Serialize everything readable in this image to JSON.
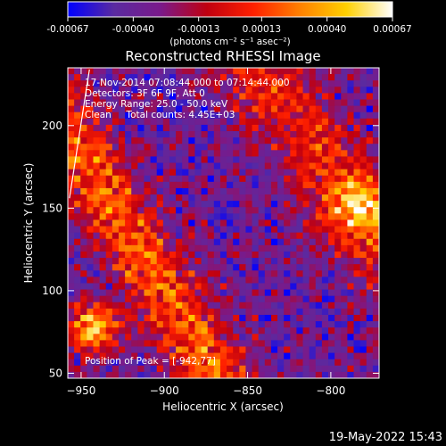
{
  "window": {
    "timestamp": "19-May-2022 15:43"
  },
  "colorbar": {
    "tick_labels": [
      "-0.00067",
      "-0.00040",
      "-0.00013",
      "0.00013",
      "0.00040",
      "0.00067"
    ],
    "unit_label": "(photons cm⁻² s⁻¹ asec⁻²)",
    "range": [
      -0.00067,
      0.00067
    ],
    "colors": [
      "#0000ff",
      "#5a2aa0",
      "#7a1a8a",
      "#c00010",
      "#ff2000",
      "#ff8000",
      "#ffd000",
      "#ffffff"
    ]
  },
  "chart_data": {
    "type": "heatmap",
    "title": "Reconstructed RHESSI Image",
    "xlabel": "Heliocentric X (arcsec)",
    "ylabel": "Heliocentric Y (arcsec)",
    "xlim": [
      -958,
      -771
    ],
    "ylim": [
      47,
      235
    ],
    "x_ticks": [
      -950,
      -900,
      -850,
      -800
    ],
    "y_ticks": [
      50,
      100,
      150,
      200
    ],
    "x_tick_labels": [
      "−950",
      "−900",
      "−850",
      "−800"
    ],
    "y_tick_labels": [
      "50",
      "100",
      "150",
      "200"
    ],
    "limb_line": [
      [
        -957,
        156
      ],
      [
        -945,
        234
      ]
    ],
    "info_lines": [
      "17-Nov-2014 07:08:44.000 to 07:14:44.000",
      "Detectors: 3F 6F 9F, Att 0",
      "Energy Range: 25.0 - 50.0 keV",
      "Clean     Total counts: 4.45E+03"
    ],
    "peak_label": "Position of Peak = [-942,77]",
    "peak_position": [
      -942,
      77
    ],
    "grid": false
  }
}
